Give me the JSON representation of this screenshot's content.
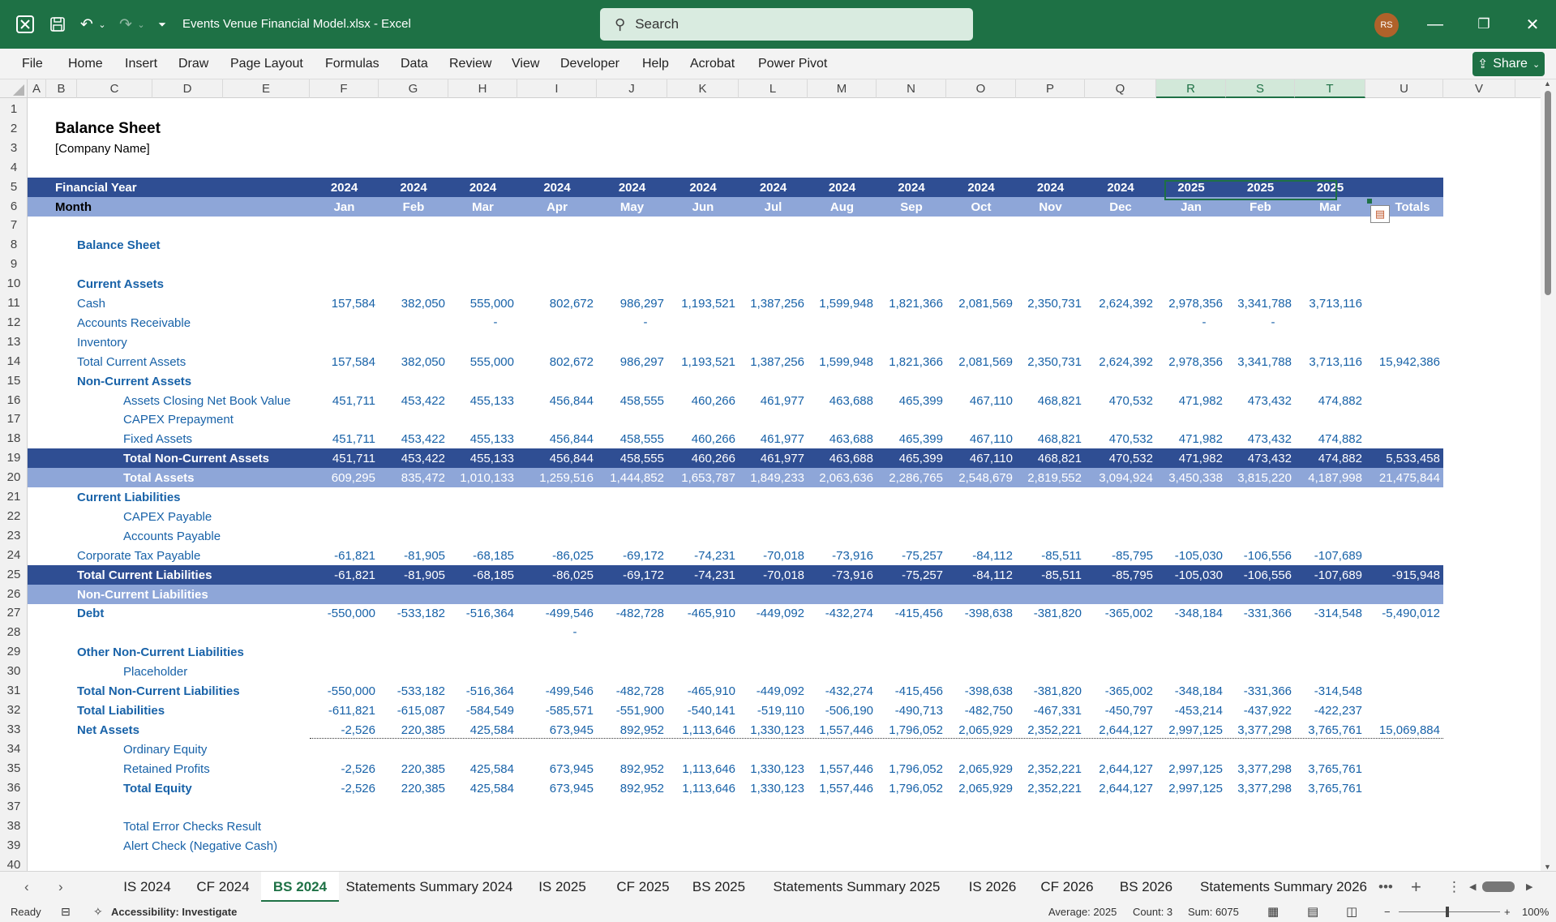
{
  "titlebar": {
    "file_title": "Events Venue Financial Model.xlsx  -  Excel",
    "search_placeholder": "Search",
    "avatar": "RS"
  },
  "ribbon": {
    "tabs": [
      "File",
      "Home",
      "Insert",
      "Draw",
      "Page Layout",
      "Formulas",
      "Data",
      "Review",
      "View",
      "Developer",
      "Help",
      "Acrobat",
      "Power Pivot"
    ],
    "share": "Share"
  },
  "columns": [
    "A",
    "B",
    "C",
    "D",
    "E",
    "F",
    "G",
    "H",
    "I",
    "J",
    "K",
    "L",
    "M",
    "N",
    "O",
    "P",
    "Q",
    "R",
    "S",
    "T",
    "U",
    "V"
  ],
  "sheet": {
    "title": "Balance Sheet",
    "company": "[Company Name]",
    "fy_label": "Financial Year",
    "month_label": "Month",
    "years": [
      "2024",
      "2024",
      "2024",
      "2024",
      "2024",
      "2024",
      "2024",
      "2024",
      "2024",
      "2024",
      "2024",
      "2024",
      "2025",
      "2025",
      "2025"
    ],
    "months": [
      "Jan",
      "Feb",
      "Mar",
      "Apr",
      "May",
      "Jun",
      "Jul",
      "Aug",
      "Sep",
      "Oct",
      "Nov",
      "Dec",
      "Jan",
      "Feb",
      "Mar"
    ],
    "totals_label": "Totals",
    "rows": [
      {
        "r": 8,
        "label": "Balance Sheet",
        "style": "lb",
        "indent": 1,
        "values": [],
        "total": ""
      },
      {
        "r": 10,
        "label": "Current Assets",
        "style": "lb",
        "indent": 1,
        "values": [],
        "total": ""
      },
      {
        "r": 11,
        "label": "Cash",
        "style": "l",
        "indent": 1,
        "values": [
          "157,584",
          "382,050",
          "555,000",
          "802,672",
          "986,297",
          "1,193,521",
          "1,387,256",
          "1,599,948",
          "1,821,366",
          "2,081,569",
          "2,350,731",
          "2,624,392",
          "2,978,356",
          "3,341,788",
          "3,713,116"
        ],
        "total": ""
      },
      {
        "r": 12,
        "label": "Accounts Receivable",
        "style": "l",
        "indent": 1,
        "values": [],
        "total": ""
      },
      {
        "r": 13,
        "label": "Inventory",
        "style": "l",
        "indent": 1,
        "values": [],
        "total": ""
      },
      {
        "r": 14,
        "label": "Total Current Assets",
        "style": "l",
        "indent": 1,
        "values": [
          "157,584",
          "382,050",
          "555,000",
          "802,672",
          "986,297",
          "1,193,521",
          "1,387,256",
          "1,599,948",
          "1,821,366",
          "2,081,569",
          "2,350,731",
          "2,624,392",
          "2,978,356",
          "3,341,788",
          "3,713,116"
        ],
        "total": "15,942,386"
      },
      {
        "r": 15,
        "label": "Non-Current Assets",
        "style": "lb",
        "indent": 1,
        "values": [],
        "total": ""
      },
      {
        "r": 16,
        "label": "Assets Closing Net Book Value",
        "style": "l",
        "indent": 2,
        "values": [
          "451,711",
          "453,422",
          "455,133",
          "456,844",
          "458,555",
          "460,266",
          "461,977",
          "463,688",
          "465,399",
          "467,110",
          "468,821",
          "470,532",
          "471,982",
          "473,432",
          "474,882"
        ],
        "total": ""
      },
      {
        "r": 17,
        "label": "CAPEX Prepayment",
        "style": "l",
        "indent": 2,
        "values": [],
        "total": ""
      },
      {
        "r": 18,
        "label": "Fixed Assets",
        "style": "l",
        "indent": 2,
        "values": [
          "451,711",
          "453,422",
          "455,133",
          "456,844",
          "458,555",
          "460,266",
          "461,977",
          "463,688",
          "465,399",
          "467,110",
          "468,821",
          "470,532",
          "471,982",
          "473,432",
          "474,882"
        ],
        "total": ""
      },
      {
        "r": 19,
        "label": "Total Non-Current Assets",
        "style": "dark",
        "indent": 2,
        "values": [
          "451,711",
          "453,422",
          "455,133",
          "456,844",
          "458,555",
          "460,266",
          "461,977",
          "463,688",
          "465,399",
          "467,110",
          "468,821",
          "470,532",
          "471,982",
          "473,432",
          "474,882"
        ],
        "total": "5,533,458"
      },
      {
        "r": 20,
        "label": "Total Assets",
        "style": "light",
        "indent": 2,
        "values": [
          "609,295",
          "835,472",
          "1,010,133",
          "1,259,516",
          "1,444,852",
          "1,653,787",
          "1,849,233",
          "2,063,636",
          "2,286,765",
          "2,548,679",
          "2,819,552",
          "3,094,924",
          "3,450,338",
          "3,815,220",
          "4,187,998"
        ],
        "total": "21,475,844"
      },
      {
        "r": 21,
        "label": "Current Liabilities",
        "style": "lb",
        "indent": 1,
        "values": [],
        "total": ""
      },
      {
        "r": 22,
        "label": "CAPEX Payable",
        "style": "l",
        "indent": 2,
        "values": [],
        "total": ""
      },
      {
        "r": 23,
        "label": "Accounts Payable",
        "style": "l",
        "indent": 2,
        "values": [],
        "total": ""
      },
      {
        "r": 24,
        "label": "Corporate Tax Payable",
        "style": "l",
        "indent": 1,
        "values": [
          "-61,821",
          "-81,905",
          "-68,185",
          "-86,025",
          "-69,172",
          "-74,231",
          "-70,018",
          "-73,916",
          "-75,257",
          "-84,112",
          "-85,511",
          "-85,795",
          "-105,030",
          "-106,556",
          "-107,689"
        ],
        "total": ""
      },
      {
        "r": 25,
        "label": "Total Current Liabilities",
        "style": "dark",
        "indent": 1,
        "values": [
          "-61,821",
          "-81,905",
          "-68,185",
          "-86,025",
          "-69,172",
          "-74,231",
          "-70,018",
          "-73,916",
          "-75,257",
          "-84,112",
          "-85,511",
          "-85,795",
          "-105,030",
          "-106,556",
          "-107,689"
        ],
        "total": "-915,948"
      },
      {
        "r": 26,
        "label": "Non-Current Liabilities",
        "style": "light",
        "indent": 1,
        "values": [],
        "total": ""
      },
      {
        "r": 27,
        "label": "Debt",
        "style": "lb",
        "indent": 1,
        "values": [
          "-550,000",
          "-533,182",
          "-516,364",
          "-499,546",
          "-482,728",
          "-465,910",
          "-449,092",
          "-432,274",
          "-415,456",
          "-398,638",
          "-381,820",
          "-365,002",
          "-348,184",
          "-331,366",
          "-314,548"
        ],
        "total": "-5,490,012"
      },
      {
        "r": 29,
        "label": "Other Non-Current Liabilities",
        "style": "lb",
        "indent": 1,
        "values": [],
        "total": ""
      },
      {
        "r": 30,
        "label": "Placeholder",
        "style": "l",
        "indent": 2,
        "values": [],
        "total": ""
      },
      {
        "r": 31,
        "label": "Total Non-Current Liabilities",
        "style": "lb",
        "indent": 1,
        "values": [
          "-550,000",
          "-533,182",
          "-516,364",
          "-499,546",
          "-482,728",
          "-465,910",
          "-449,092",
          "-432,274",
          "-415,456",
          "-398,638",
          "-381,820",
          "-365,002",
          "-348,184",
          "-331,366",
          "-314,548"
        ],
        "total": ""
      },
      {
        "r": 32,
        "label": "Total Liabilities",
        "style": "lb",
        "indent": 1,
        "values": [
          "-611,821",
          "-615,087",
          "-584,549",
          "-585,571",
          "-551,900",
          "-540,141",
          "-519,110",
          "-506,190",
          "-490,713",
          "-482,750",
          "-467,331",
          "-450,797",
          "-453,214",
          "-437,922",
          "-422,237"
        ],
        "total": ""
      },
      {
        "r": 33,
        "label": "Net Assets",
        "style": "lb",
        "indent": 1,
        "values": [
          "-2,526",
          "220,385",
          "425,584",
          "673,945",
          "892,952",
          "1,113,646",
          "1,330,123",
          "1,557,446",
          "1,796,052",
          "2,065,929",
          "2,352,221",
          "2,644,127",
          "2,997,125",
          "3,377,298",
          "3,765,761"
        ],
        "total": "15,069,884"
      },
      {
        "r": 34,
        "label": "Ordinary Equity",
        "style": "l",
        "indent": 2,
        "values": [],
        "total": ""
      },
      {
        "r": 35,
        "label": "Retained Profits",
        "style": "l",
        "indent": 2,
        "values": [
          "-2,526",
          "220,385",
          "425,584",
          "673,945",
          "892,952",
          "1,113,646",
          "1,330,123",
          "1,557,446",
          "1,796,052",
          "2,065,929",
          "2,352,221",
          "2,644,127",
          "2,997,125",
          "3,377,298",
          "3,765,761"
        ],
        "total": ""
      },
      {
        "r": 36,
        "label": "Total Equity",
        "style": "lb",
        "indent": 2,
        "values": [
          "-2,526",
          "220,385",
          "425,584",
          "673,945",
          "892,952",
          "1,113,646",
          "1,330,123",
          "1,557,446",
          "1,796,052",
          "2,065,929",
          "2,352,221",
          "2,644,127",
          "2,997,125",
          "3,377,298",
          "3,765,761"
        ],
        "total": ""
      },
      {
        "r": 38,
        "label": "Total Error Checks Result",
        "style": "l",
        "indent": 2,
        "values": [],
        "total": ""
      },
      {
        "r": 39,
        "label": "Alert Check (Negative Cash)",
        "style": "l",
        "indent": 2,
        "values": [],
        "total": ""
      }
    ],
    "dashes": [
      {
        "r": 12,
        "col": 3
      },
      {
        "r": 12,
        "col": 5
      },
      {
        "r": 12,
        "col": 13
      },
      {
        "r": 12,
        "col": 14
      },
      {
        "r": 28,
        "col": 4
      }
    ]
  },
  "sheet_tabs": [
    "IS 2024",
    "CF 2024",
    "BS 2024",
    "Statements Summary 2024",
    "IS 2025",
    "CF 2025",
    "BS 2025",
    "Statements Summary 2025",
    "IS 2026",
    "CF 2026",
    "BS 2026",
    "Statements Summary 2026"
  ],
  "active_tab": "BS 2024",
  "status": {
    "ready": "Ready",
    "accessibility": "Accessibility: Investigate",
    "average": "Average: 2025",
    "count": "Count: 3",
    "sum": "Sum: 6075",
    "zoom": "100%"
  }
}
